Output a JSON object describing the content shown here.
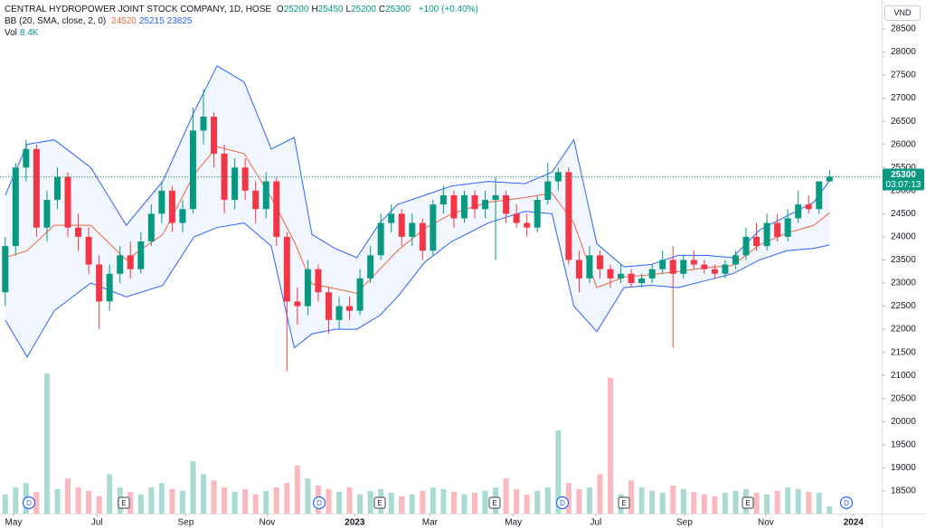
{
  "chart_data": {
    "type": "candlestick",
    "title": "CENTRAL HYDROPOWER JOINT STOCK COMPANY, 1D, HOSE",
    "ohlc_labels": [
      "O",
      "H",
      "L",
      "C"
    ],
    "change": "+100 (+0.40%)",
    "currency": "VND",
    "countdown": "03:07:13",
    "up_color": "#089981",
    "down_color": "#f23645",
    "open": [
      22800,
      23800,
      25500,
      25900,
      24200,
      24800,
      25300,
      24200,
      24000,
      23400,
      22600,
      23200,
      23600,
      23300,
      23900,
      24500,
      25000,
      24300,
      24600,
      26300,
      26600,
      25800,
      24800,
      25500,
      25000,
      24600,
      25200,
      24000,
      22600,
      22500,
      23300,
      22800,
      22200,
      22500,
      22400,
      23100,
      23600,
      24300,
      24500,
      24000,
      24300,
      23700,
      24700,
      24900,
      24400,
      24900,
      24600,
      24800,
      24900,
      24500,
      24300,
      24200,
      24800,
      25200,
      25400,
      23500,
      23100,
      23600,
      23300,
      23100,
      23200,
      23000,
      23100,
      23300,
      23500,
      23200,
      23500,
      23400,
      23300,
      23200,
      23400,
      23600,
      24000,
      23800,
      24300,
      24000,
      24400,
      24700,
      24600,
      25200
    ],
    "high": [
      24000,
      25600,
      26100,
      26000,
      25000,
      25500,
      25400,
      24500,
      24200,
      23600,
      23400,
      23800,
      23900,
      24100,
      24700,
      25200,
      25100,
      24800,
      26800,
      27200,
      26700,
      26000,
      25700,
      25700,
      25200,
      25400,
      25300,
      24100,
      22900,
      23500,
      23400,
      22900,
      22700,
      22700,
      23300,
      23800,
      24500,
      24700,
      24600,
      24500,
      24400,
      24800,
      25100,
      25000,
      25000,
      25000,
      25000,
      25300,
      25000,
      24700,
      24500,
      24900,
      25600,
      25500,
      25500,
      23700,
      23800,
      23700,
      23400,
      23400,
      23300,
      23200,
      23400,
      23700,
      23800,
      23600,
      23700,
      23500,
      23400,
      23500,
      23700,
      24200,
      24300,
      24500,
      24500,
      24600,
      25000,
      24900,
      25200,
      25450
    ],
    "low": [
      22500,
      23600,
      25200,
      24000,
      23900,
      24600,
      24000,
      23700,
      23200,
      22000,
      22400,
      23000,
      23100,
      23200,
      23800,
      24300,
      24100,
      24100,
      24500,
      26000,
      25500,
      24500,
      24600,
      24800,
      24300,
      24400,
      23800,
      21100,
      22100,
      22300,
      22600,
      21900,
      22000,
      22200,
      22300,
      23000,
      23500,
      24100,
      23800,
      23800,
      23500,
      23600,
      24500,
      24200,
      24300,
      24400,
      24400,
      23500,
      24300,
      24200,
      24000,
      24100,
      24700,
      25000,
      23400,
      22800,
      23000,
      23100,
      22900,
      23000,
      22900,
      22900,
      23000,
      23200,
      21600,
      23100,
      23300,
      23200,
      23100,
      23100,
      23300,
      23500,
      23700,
      23700,
      23900,
      23900,
      24300,
      24500,
      24500,
      25200
    ],
    "close": [
      23800,
      25500,
      25900,
      24200,
      24800,
      25300,
      24200,
      24000,
      23400,
      22600,
      23200,
      23600,
      23300,
      23900,
      24500,
      25000,
      24300,
      24600,
      26300,
      26600,
      25800,
      24800,
      25500,
      25000,
      24600,
      25200,
      24000,
      22600,
      22500,
      23300,
      22800,
      22200,
      22500,
      22400,
      23100,
      23600,
      24300,
      24500,
      24000,
      24300,
      23700,
      24700,
      24900,
      24400,
      24900,
      24600,
      24800,
      24900,
      24500,
      24300,
      24200,
      24800,
      25200,
      25400,
      23500,
      23100,
      23600,
      23300,
      23100,
      23200,
      23000,
      23100,
      23300,
      23500,
      23200,
      23500,
      23400,
      23300,
      23200,
      23400,
      23600,
      24000,
      23800,
      24300,
      24000,
      24400,
      24700,
      24600,
      25200,
      25300
    ],
    "volume": {
      "label": "Vol",
      "last_label": "8.4K",
      "values": [
        22000,
        30000,
        35000,
        25000,
        160000,
        28000,
        40000,
        30000,
        26000,
        20000,
        45000,
        30000,
        25000,
        22000,
        30000,
        35000,
        28000,
        26000,
        60000,
        45000,
        38000,
        30000,
        25000,
        28000,
        22000,
        26000,
        30000,
        35000,
        55000,
        40000,
        32000,
        28000,
        25000,
        30000,
        22000,
        26000,
        28000,
        24000,
        20000,
        22000,
        26000,
        30000,
        28000,
        25000,
        22000,
        24000,
        26000,
        30000,
        40000,
        28000,
        22000,
        26000,
        30000,
        95000,
        35000,
        28000,
        30000,
        45000,
        155000,
        22000,
        38000,
        30000,
        26000,
        24000,
        32000,
        28000,
        25000,
        22000,
        20000,
        24000,
        26000,
        28000,
        24000,
        22000,
        26000,
        30000,
        28000,
        25000,
        24000,
        8400
      ]
    },
    "bollinger": {
      "label": "BB (20, SMA, close, 2, 0)",
      "fill": "#2962ff",
      "x": [
        0,
        2.1,
        4.7,
        8.2,
        11.6,
        15.1,
        18.1,
        20.3,
        22.9,
        25.5,
        27.7,
        29.4,
        31.6,
        33.7,
        35.9,
        37.6,
        40.2,
        42.8,
        46.3,
        49.8,
        52.4,
        54.5,
        56.7,
        59.3,
        61.9,
        64.5,
        67.1,
        69.7,
        72.3,
        74.9,
        77.5,
        79
      ],
      "series": [
        {
          "color": "#f0663c",
          "values": [
            23550,
            23700,
            24250,
            24250,
            23500,
            24050,
            25350,
            25950,
            25800,
            24850,
            23900,
            22980,
            22880,
            22780,
            23300,
            23700,
            24180,
            24500,
            24750,
            24850,
            24950,
            24300,
            22900,
            23130,
            23180,
            23250,
            23330,
            23380,
            23830,
            24080,
            24250,
            24520
          ]
        },
        {
          "color": "#2962ff",
          "values": [
            24900,
            26000,
            26100,
            25500,
            24250,
            25200,
            26700,
            27700,
            27350,
            25900,
            26150,
            24050,
            23750,
            23550,
            24300,
            24700,
            24900,
            25100,
            25200,
            25150,
            25400,
            26100,
            23850,
            23350,
            23400,
            23600,
            23600,
            23550,
            24150,
            24450,
            24750,
            25215
          ]
        },
        {
          "color": "#2962ff",
          "values": [
            22200,
            21400,
            22400,
            23000,
            22700,
            22950,
            24000,
            24200,
            24300,
            23800,
            21600,
            21900,
            22000,
            22000,
            22300,
            22700,
            23450,
            23900,
            24300,
            24550,
            24500,
            22500,
            21950,
            22900,
            22950,
            22900,
            23050,
            23200,
            23500,
            23700,
            23750,
            23825
          ]
        }
      ]
    },
    "events": [
      "D",
      "E",
      "D",
      "E",
      "E",
      "D",
      "E",
      "E",
      "D"
    ],
    "xlim": [
      -0.5,
      84
    ],
    "xticks": [
      {
        "value": 0.8,
        "label": "May"
      },
      {
        "value": 8.8,
        "label": "Jul"
      },
      {
        "value": 17.3,
        "label": "Sep"
      },
      {
        "value": 25.1,
        "label": "Nov"
      },
      {
        "value": 33.5,
        "label": "2023"
      },
      {
        "value": 40.7,
        "label": "Mar"
      },
      {
        "value": 48.7,
        "label": "May"
      },
      {
        "value": 56.6,
        "label": "Jul"
      },
      {
        "value": 65.1,
        "label": "Sep"
      },
      {
        "value": 72.9,
        "label": "Nov"
      },
      {
        "value": 81.3,
        "label": "2024"
      }
    ],
    "ylim": [
      18010,
      29125
    ],
    "yticks": [
      18500,
      19000,
      19500,
      20000,
      20500,
      21000,
      21500,
      22000,
      22500,
      23000,
      23500,
      24000,
      24500,
      25000,
      25500,
      26000,
      26500,
      27000,
      27500,
      28000,
      28500
    ],
    "grid": false
  }
}
